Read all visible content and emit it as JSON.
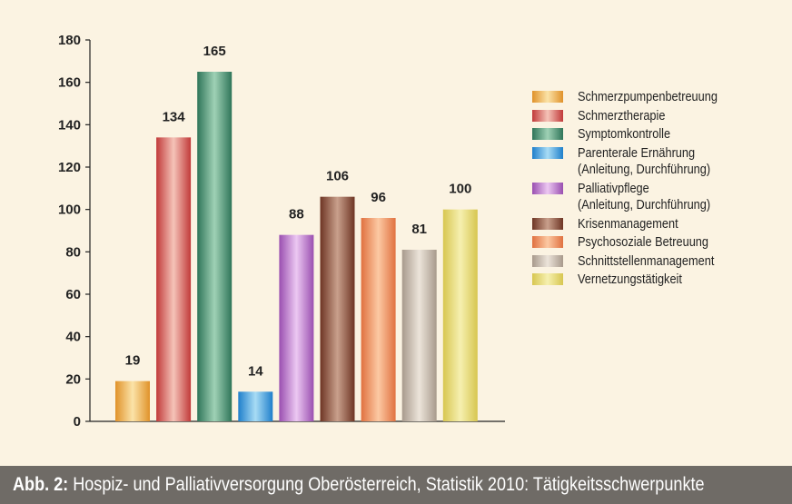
{
  "chart_data": {
    "type": "bar",
    "categories": [
      "Schmerzpumpenbetreuung",
      "Schmerztherapie",
      "Symptomkontrolle",
      "Parenterale Ernährung (Anleitung, Durchführung)",
      "Palliativpflege (Anleitung, Durchführung)",
      "Krisenmanagement",
      "Psychosoziale Betreuung",
      "Schnittstellenmanagement",
      "Vernetzungstätigkeit"
    ],
    "values": [
      19,
      134,
      165,
      14,
      88,
      106,
      96,
      81,
      100
    ],
    "ylim": [
      0,
      180
    ],
    "yticks": [
      "0",
      "20",
      "40",
      "60",
      "80",
      "100",
      "120",
      "140",
      "160",
      "180"
    ],
    "grid": false,
    "legend_position": "right",
    "colors": [
      {
        "dark": "#e0922a",
        "light": "#fbe3a8"
      },
      {
        "dark": "#c13a3a",
        "light": "#f5c3b8"
      },
      {
        "dark": "#2f7559",
        "light": "#9fd1b5"
      },
      {
        "dark": "#1f7fcb",
        "light": "#a8dcf5"
      },
      {
        "dark": "#9a4fb0",
        "light": "#ecc8f2"
      },
      {
        "dark": "#6e3524",
        "light": "#c9a08c"
      },
      {
        "dark": "#e0713f",
        "light": "#fcc9a3"
      },
      {
        "dark": "#a89a8c",
        "light": "#ece4da"
      },
      {
        "dark": "#d7c650",
        "light": "#f6f0b0"
      }
    ]
  },
  "legend": [
    {
      "lines": [
        "Schmerzpumpenbetreuung"
      ]
    },
    {
      "lines": [
        "Schmerztherapie"
      ]
    },
    {
      "lines": [
        "Symptomkontrolle"
      ]
    },
    {
      "lines": [
        "Parenterale Ernährung",
        "(Anleitung, Durchführung)"
      ]
    },
    {
      "lines": [
        "Palliativpflege",
        "(Anleitung, Durchführung)"
      ]
    },
    {
      "lines": [
        "Krisenmanagement"
      ]
    },
    {
      "lines": [
        "Psychosoziale Betreuung"
      ]
    },
    {
      "lines": [
        "Schnittstellenmanagement"
      ]
    },
    {
      "lines": [
        "Vernetzungstätigkeit"
      ]
    }
  ],
  "caption": {
    "prefix": "Abb. 2:",
    "text": " Hospiz- und Palliativversorgung Oberösterreich, Statistik 2010: Tätigkeitsschwerpunkte"
  }
}
